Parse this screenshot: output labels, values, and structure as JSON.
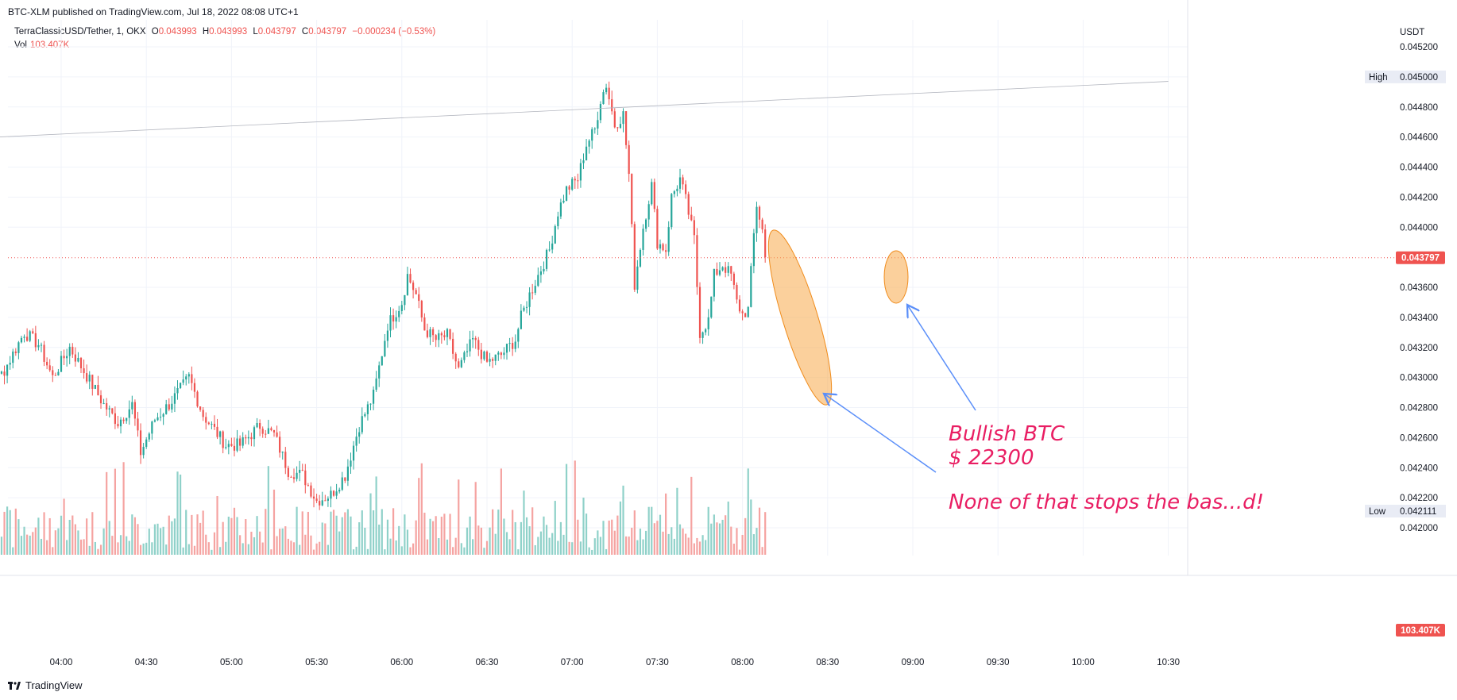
{
  "header": {
    "published": "BTC-XLM published on TradingView.com, Jul 18, 2022 08:08 UTC+1"
  },
  "legend": {
    "symbol": "TerraClassicUSD/Tether, 1, OKX",
    "o_label": "O",
    "o": "0.043993",
    "h_label": "H",
    "h": "0.043993",
    "l_label": "L",
    "l": "0.043797",
    "c_label": "C",
    "c": "0.043797",
    "change": "−0.000234 (−0.53%)",
    "vol_label": "Vol",
    "vol": "103.407K"
  },
  "footer": {
    "brand": "TradingView"
  },
  "colors": {
    "up": "#26a69a",
    "down": "#ef5350",
    "up_vol": "#8fd1c9",
    "down_vol": "#f5a3a1",
    "annotation": "#e91e63",
    "arrow": "#5b8ff9",
    "highlight": "#f7a94a"
  },
  "chart_data": {
    "type": "candlestick",
    "currency": "USDT",
    "x_ticks": [
      "04:00",
      "04:30",
      "05:00",
      "05:30",
      "06:00",
      "06:30",
      "07:00",
      "07:30",
      "08:00",
      "08:30",
      "09:00",
      "09:30",
      "10:00",
      "10:30"
    ],
    "y_ticks": [
      "0.045200",
      "0.045000",
      "0.044800",
      "0.044600",
      "0.044400",
      "0.044200",
      "0.044000",
      "0.043600",
      "0.043400",
      "0.043200",
      "0.043000",
      "0.042800",
      "0.042600",
      "0.042400",
      "0.042200",
      "0.042000"
    ],
    "ylim": [
      0.04195,
      0.0453
    ],
    "last_price": "0.043797",
    "high_label": "High",
    "high_value": "0.045000",
    "low_label": "Low",
    "low_value": "0.042111",
    "volume_label": "103.407K",
    "trendline": {
      "from": {
        "time": "03:27",
        "price": 0.04459
      },
      "to": {
        "time": "10:30",
        "price": 0.04497
      }
    },
    "anchors": [
      [
        "03:27",
        0.04265
      ],
      [
        "03:32",
        0.04285
      ],
      [
        "03:40",
        0.04305
      ],
      [
        "03:47",
        0.0433
      ],
      [
        "03:52",
        0.04322
      ],
      [
        "03:57",
        0.043
      ],
      [
        "04:03",
        0.0432
      ],
      [
        "04:10",
        0.04298
      ],
      [
        "04:15",
        0.04282
      ],
      [
        "04:20",
        0.0427
      ],
      [
        "04:25",
        0.04282
      ],
      [
        "04:28",
        0.0425
      ],
      [
        "04:33",
        0.04272
      ],
      [
        "04:38",
        0.04282
      ],
      [
        "04:45",
        0.043
      ],
      [
        "04:50",
        0.04275
      ],
      [
        "04:58",
        0.04255
      ],
      [
        "05:03",
        0.04255
      ],
      [
        "05:10",
        0.04268
      ],
      [
        "05:15",
        0.04262
      ],
      [
        "05:20",
        0.04238
      ],
      [
        "05:25",
        0.04235
      ],
      [
        "05:30",
        0.04218
      ],
      [
        "05:35",
        0.04222
      ],
      [
        "05:40",
        0.04235
      ],
      [
        "05:45",
        0.04268
      ],
      [
        "05:50",
        0.04288
      ],
      [
        "05:55",
        0.04335
      ],
      [
        "06:00",
        0.0435
      ],
      [
        "06:02",
        0.04368
      ],
      [
        "06:05",
        0.04355
      ],
      [
        "06:08",
        0.04332
      ],
      [
        "06:12",
        0.04325
      ],
      [
        "06:16",
        0.04328
      ],
      [
        "06:20",
        0.04305
      ],
      [
        "06:25",
        0.04325
      ],
      [
        "06:30",
        0.0431
      ],
      [
        "06:35",
        0.04315
      ],
      [
        "06:40",
        0.04325
      ],
      [
        "06:42",
        0.0434
      ],
      [
        "06:45",
        0.04355
      ],
      [
        "06:48",
        0.04368
      ],
      [
        "06:52",
        0.04385
      ],
      [
        "06:55",
        0.0441
      ],
      [
        "06:58",
        0.04425
      ],
      [
        "07:02",
        0.04432
      ],
      [
        "07:05",
        0.04455
      ],
      [
        "07:08",
        0.04465
      ],
      [
        "07:10",
        0.04485
      ],
      [
        "07:12",
        0.04495
      ],
      [
        "07:15",
        0.04468
      ],
      [
        "07:18",
        0.04475
      ],
      [
        "07:20",
        0.04435
      ],
      [
        "07:22",
        0.04362
      ],
      [
        "07:25",
        0.044
      ],
      [
        "07:28",
        0.04428
      ],
      [
        "07:30",
        0.0439
      ],
      [
        "07:33",
        0.04385
      ],
      [
        "07:35",
        0.0442
      ],
      [
        "07:38",
        0.04432
      ],
      [
        "07:40",
        0.04418
      ],
      [
        "07:43",
        0.04392
      ],
      [
        "07:45",
        0.0433
      ],
      [
        "07:48",
        0.04338
      ],
      [
        "07:50",
        0.04368
      ],
      [
        "07:53",
        0.04375
      ],
      [
        "07:56",
        0.04368
      ],
      [
        "07:58",
        0.0435
      ],
      [
        "08:00",
        0.04342
      ],
      [
        "08:02",
        0.04345
      ],
      [
        "08:04",
        0.04395
      ],
      [
        "08:05",
        0.04415
      ],
      [
        "08:07",
        0.04398
      ],
      [
        "08:08",
        0.0438
      ]
    ],
    "annotations": [
      "Bullish BTC",
      "$ 22300",
      "None of that stops the bas...d!"
    ]
  }
}
